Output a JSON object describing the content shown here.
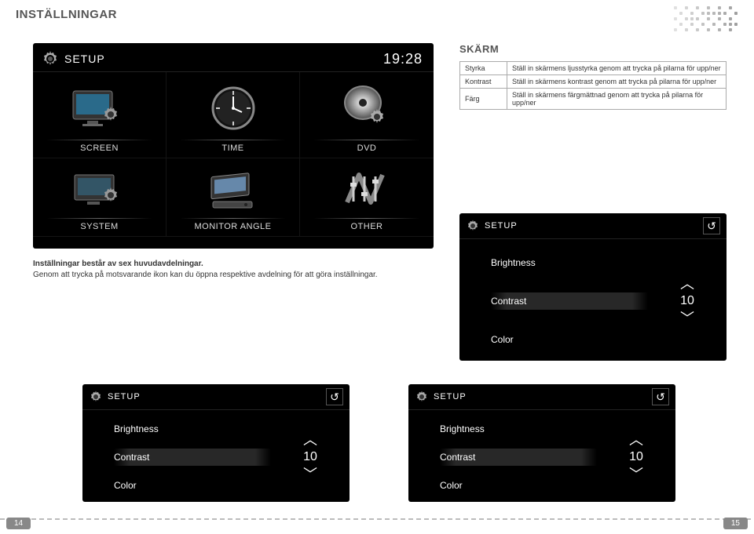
{
  "page": {
    "title": "INSTÄLLNINGAR",
    "left_num": "14",
    "right_num": "15"
  },
  "main_panel": {
    "setup_label": "SETUP",
    "time": "19:28",
    "cells": [
      {
        "label": "SCREEN"
      },
      {
        "label": "TIME"
      },
      {
        "label": "DVD"
      },
      {
        "label": "SYSTEM"
      },
      {
        "label": "MONITOR ANGLE"
      },
      {
        "label": "OTHER"
      }
    ]
  },
  "skarm": {
    "title": "SKÄRM",
    "rows": [
      {
        "name": "Styrka",
        "desc": "Ställ in skärmens ljusstyrka genom att trycka på pilarna för upp/ner"
      },
      {
        "name": "Kontrast",
        "desc": "Ställ in skärmens kontrast genom att trycka på pilarna för upp/ner"
      },
      {
        "name": "Färg",
        "desc": "Ställ in skärmens färgmättnad genom att trycka på pilarna för upp/ner"
      }
    ]
  },
  "intro": {
    "bold": "Inställningar består av sex huvudavdelningar.",
    "rest": "Genom att trycka på motsvarande ikon kan du öppna respektive avdelning för att göra inställningar."
  },
  "adjust": {
    "setup_label": "SETUP",
    "items": {
      "brightness": "Brightness",
      "contrast": "Contrast",
      "color": "Color"
    },
    "value": "10"
  },
  "colors": {
    "panel_bg": "#000000",
    "text_muted": "#555555",
    "border": "#aaaaaa"
  }
}
